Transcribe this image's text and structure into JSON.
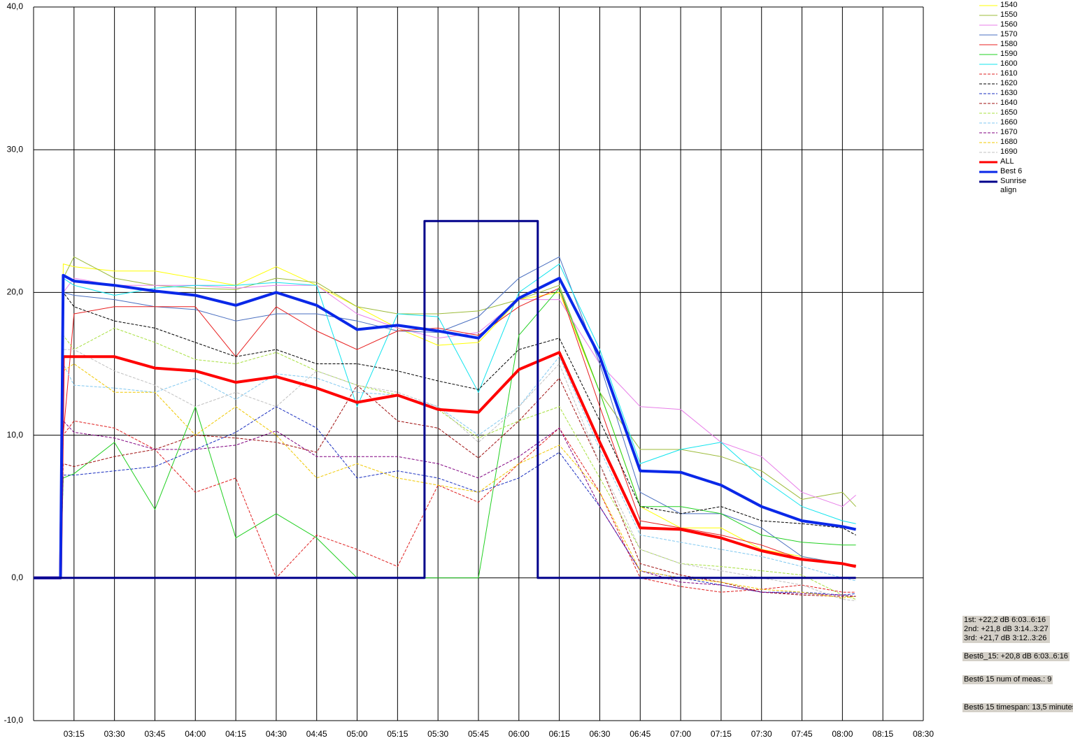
{
  "chart_data": {
    "type": "line",
    "x": [
      "03:00",
      "03:10",
      "03:11",
      "03:15",
      "03:30",
      "03:45",
      "04:00",
      "04:15",
      "04:30",
      "04:45",
      "05:00",
      "05:15",
      "05:30",
      "05:45",
      "06:00",
      "06:15",
      "06:30",
      "06:45",
      "07:00",
      "07:15",
      "07:30",
      "07:45",
      "08:00",
      "08:05"
    ],
    "xlim": [
      "03:00",
      "08:30"
    ],
    "xticks": [
      "03:15",
      "03:30",
      "03:45",
      "04:00",
      "04:15",
      "04:30",
      "04:45",
      "05:00",
      "05:15",
      "05:30",
      "05:45",
      "06:00",
      "06:15",
      "06:30",
      "06:45",
      "07:00",
      "07:15",
      "07:30",
      "07:45",
      "08:00",
      "08:15",
      "08:30"
    ],
    "ylim": [
      -10,
      40
    ],
    "yticks": [
      {
        "value": -10,
        "label": "-10,0"
      },
      {
        "value": 0,
        "label": "0,0"
      },
      {
        "value": 10,
        "label": "10,0"
      },
      {
        "value": 20,
        "label": "20,0"
      },
      {
        "value": 30,
        "label": "30,0"
      },
      {
        "value": 40,
        "label": "40,0"
      }
    ],
    "grid": true,
    "series": [
      {
        "name": "1540",
        "color": "#ffff00",
        "values": [
          0,
          0,
          22,
          21.8,
          21.5,
          21.5,
          21,
          20.5,
          21.8,
          20.5,
          19,
          17.5,
          16.3,
          16.5,
          19.5,
          20,
          13,
          5,
          3.5,
          3.5,
          2,
          1.5,
          1,
          0.9
        ]
      },
      {
        "name": "1550",
        "color": "#9cbb3a",
        "values": [
          0,
          0,
          21,
          22.5,
          21,
          20.5,
          20.3,
          20.2,
          21,
          20.7,
          19,
          18.5,
          18.5,
          18.7,
          19.5,
          20.5,
          13,
          9,
          9,
          8.5,
          7.5,
          5.5,
          6,
          5
        ]
      },
      {
        "name": "1560",
        "color": "#e87ee8",
        "values": [
          0,
          0,
          20,
          21,
          20.5,
          20.5,
          20.5,
          20.3,
          20.5,
          20.5,
          18.5,
          17.5,
          16.8,
          17.2,
          19.5,
          19.5,
          15,
          12,
          11.8,
          9.5,
          8.5,
          6,
          5,
          5.8
        ]
      },
      {
        "name": "1570",
        "color": "#4a6fc0",
        "values": [
          0,
          0,
          20,
          19.8,
          19.5,
          19,
          18.8,
          18,
          18.5,
          18.5,
          18,
          17.3,
          17.2,
          18.3,
          21,
          22.5,
          15,
          6,
          4.5,
          4.5,
          3.5,
          1.5,
          1,
          0.8
        ]
      },
      {
        "name": "1580",
        "color": "#e82020",
        "values": [
          0,
          0,
          10,
          18.5,
          19,
          19,
          19,
          15.5,
          19,
          17.3,
          16,
          17.3,
          17.5,
          17,
          19,
          20.3,
          12,
          4,
          3.5,
          3,
          2.3,
          1.3,
          1,
          0.9
        ]
      },
      {
        "name": "1590",
        "color": "#22d022",
        "values": [
          0,
          0,
          7,
          7.3,
          9.5,
          4.8,
          12,
          2.8,
          4.5,
          2.8,
          0,
          0,
          0,
          0,
          17,
          20.3,
          13,
          5,
          5,
          4.5,
          3,
          2.5,
          2.3,
          2.3
        ]
      },
      {
        "name": "1600",
        "color": "#10e4ee",
        "values": [
          0,
          0,
          21,
          20.5,
          19.8,
          20.3,
          20.5,
          20.5,
          20.7,
          20.5,
          12,
          18.5,
          18.3,
          13,
          20,
          22,
          16,
          8,
          9,
          9.5,
          7,
          5,
          4,
          3.8
        ]
      },
      {
        "name": "1610",
        "color": "#e02020",
        "dashed": true,
        "values": [
          0,
          0,
          10,
          11,
          10.5,
          9,
          6,
          7,
          0,
          3,
          2,
          0.8,
          6.5,
          5.3,
          8,
          10.5,
          6,
          0,
          -0.6,
          -1,
          -0.8,
          -0.5,
          -1,
          -1
        ]
      },
      {
        "name": "1620",
        "color": "#000000",
        "dashed": true,
        "values": [
          0,
          0,
          20,
          19,
          18,
          17.5,
          16.5,
          15.5,
          16,
          15,
          15,
          14.5,
          13.8,
          13.2,
          16,
          16.8,
          11,
          5,
          4.5,
          5,
          4,
          3.8,
          3.5,
          3
        ]
      },
      {
        "name": "1630",
        "color": "#1a2fc0",
        "dashed": true,
        "values": [
          0,
          0,
          7.2,
          7.2,
          7.5,
          7.8,
          9,
          10.2,
          12,
          10.5,
          7,
          7.5,
          7,
          6,
          7,
          8.8,
          5,
          0.5,
          0,
          -0.5,
          -1,
          -1,
          -1.2,
          -1.1
        ]
      },
      {
        "name": "1640",
        "color": "#a01010",
        "dashed": true,
        "values": [
          0,
          0,
          8,
          7.8,
          8.5,
          9,
          10,
          9.8,
          9.5,
          8.8,
          13.5,
          11,
          10.5,
          8.4,
          11,
          14,
          8,
          1,
          0.2,
          -0.3,
          -1,
          -1.2,
          -1.3,
          -1.3
        ]
      },
      {
        "name": "1650",
        "color": "#a8e040",
        "dashed": true,
        "values": [
          0,
          0,
          17,
          16,
          17.5,
          16.5,
          15.3,
          15,
          15.8,
          14.5,
          13.5,
          12.8,
          11.8,
          9.8,
          11,
          12,
          7,
          2,
          1,
          0.8,
          0.5,
          0.2,
          -1.2,
          -1.5
        ]
      },
      {
        "name": "1660",
        "color": "#80c8f0",
        "dashed": true,
        "values": [
          0,
          0,
          15,
          13.5,
          13.3,
          13,
          14,
          12.5,
          14.3,
          14,
          13,
          12.8,
          12,
          10,
          12,
          15.5,
          9,
          3,
          2.5,
          2,
          1.5,
          0.8,
          0,
          -0.2
        ]
      },
      {
        "name": "1670",
        "color": "#800080",
        "dashed": true,
        "values": [
          0,
          0,
          11,
          10.2,
          9.8,
          9,
          9,
          9.3,
          10.3,
          8.5,
          8.5,
          8.5,
          8,
          7,
          8.5,
          10.5,
          5,
          0.5,
          -0.3,
          -0.5,
          -1,
          -1.1,
          -1.2,
          -1.3
        ]
      },
      {
        "name": "1680",
        "color": "#f0c800",
        "dashed": true,
        "values": [
          0,
          0,
          14.5,
          15,
          13,
          13,
          10,
          12,
          10,
          7,
          8,
          7,
          6.5,
          6,
          8,
          9.3,
          6,
          0.5,
          0,
          -0.3,
          -0.8,
          -1,
          -1.4,
          -1.3
        ]
      },
      {
        "name": "1690",
        "color": "#c0c0c0",
        "dashed": true,
        "values": [
          0,
          0,
          16,
          16,
          14.5,
          13.5,
          12,
          13,
          12,
          14.5,
          13.5,
          13,
          12,
          9.5,
          12,
          15,
          8,
          2,
          1,
          0.5,
          0,
          -0.5,
          -1.5,
          -1.6
        ]
      },
      {
        "name": "ALL",
        "color": "#ff0000",
        "line_width": 4,
        "values": [
          0,
          0,
          15.5,
          15.5,
          15.5,
          14.7,
          14.5,
          13.7,
          14.1,
          13.3,
          12.3,
          12.8,
          11.8,
          11.6,
          14.6,
          15.8,
          9.5,
          3.5,
          3.4,
          2.8,
          1.9,
          1.3,
          1,
          0.8
        ]
      },
      {
        "name": "Best 6",
        "color": "#0a28e8",
        "line_width": 4,
        "values": [
          0,
          0,
          21.2,
          20.8,
          20.5,
          20.1,
          19.8,
          19.1,
          20,
          19.1,
          17.4,
          17.7,
          17.3,
          16.8,
          19.6,
          21,
          15.5,
          7.5,
          7.4,
          6.5,
          5,
          4,
          3.6,
          3.4
        ]
      },
      {
        "name": "Sunrise align",
        "color": "#00008b",
        "line_width": 3,
        "x": [
          "03:00",
          "05:25",
          "05:25",
          "06:07",
          "06:07",
          "08:05"
        ],
        "values": [
          0,
          0,
          25,
          25,
          0,
          0
        ]
      }
    ],
    "annotations": [
      "1st: +22,2 dB 6:03..6:16\n2nd: +21,8 dB 3:14..3:27\n3rd: +21,7 dB 3:12..3:26",
      "Best6_15: +20,8 dB 6:03..6:16",
      "Best6 15 num of meas.: 9",
      "Best6 15 timespan: 13,5 minutes"
    ]
  }
}
